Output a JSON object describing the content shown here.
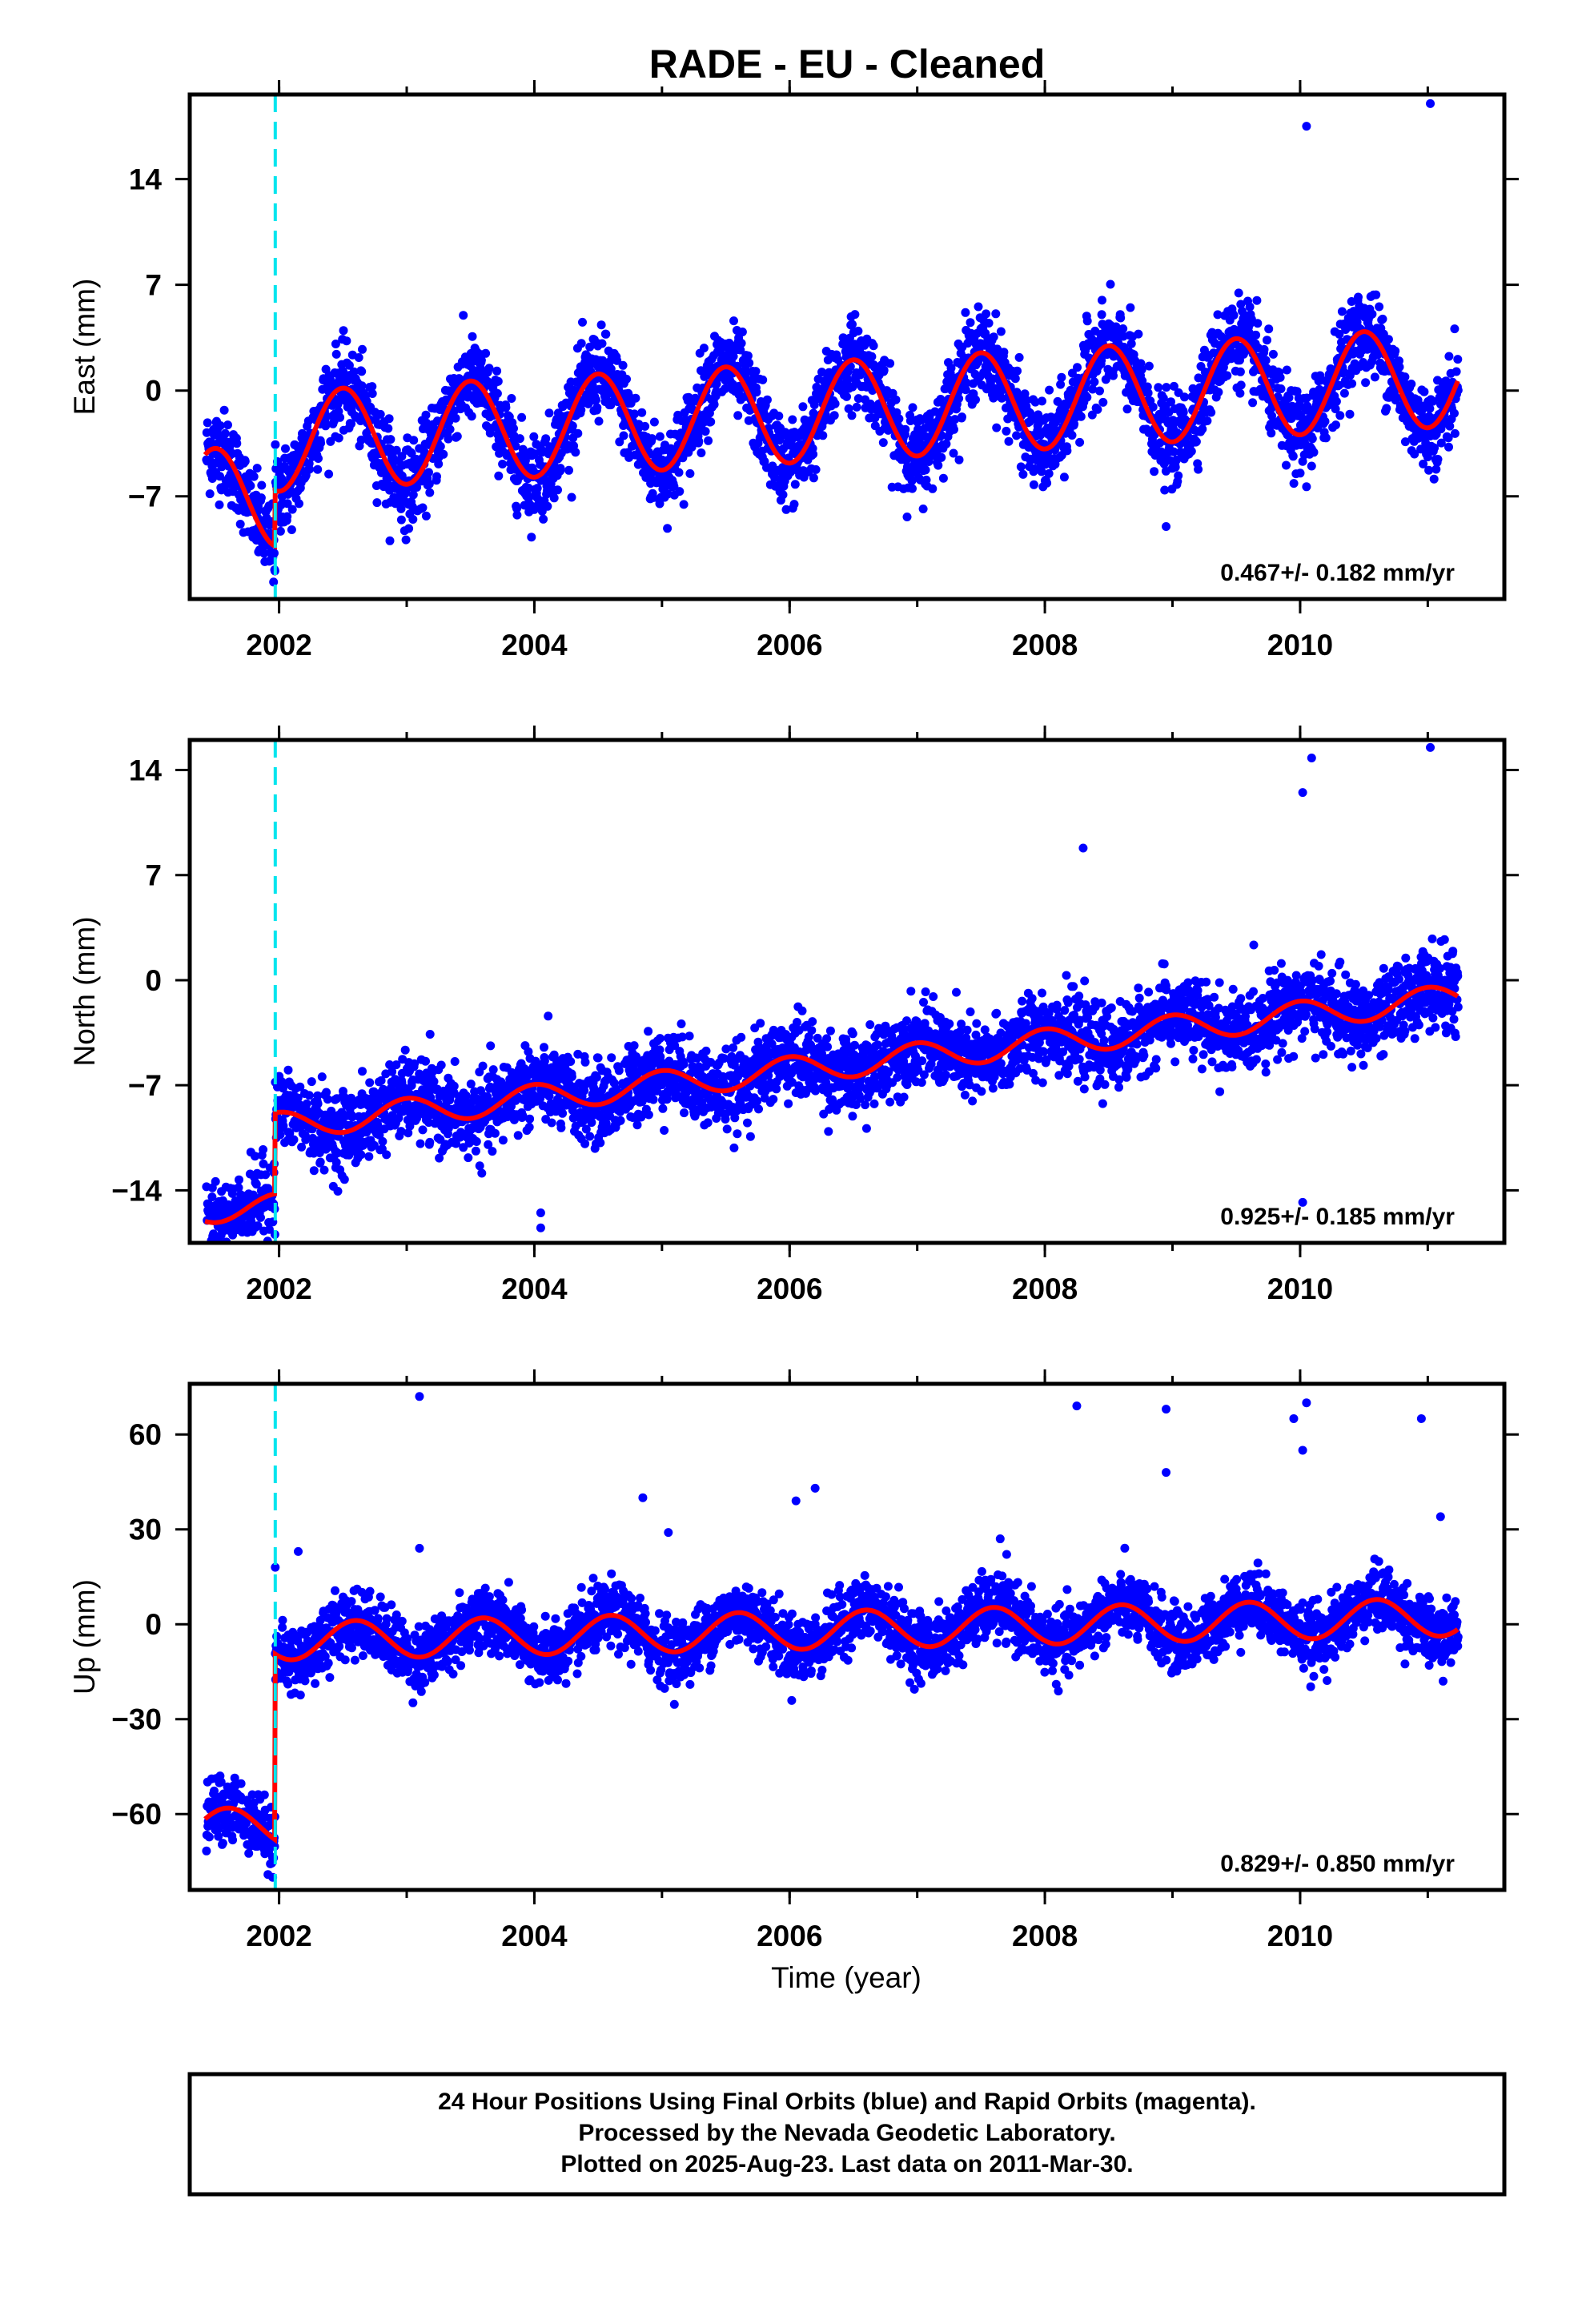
{
  "title": "RADE  - EU - Cleaned",
  "xlabel": "Time (year)",
  "footer": [
    "24 Hour Positions Using Final Orbits (blue) and Rapid Orbits (magenta).",
    "Processed by the Nevada Geodetic Laboratory.",
    "Plotted on 2025-Aug-23. Last data on 2011-Mar-30."
  ],
  "colors": {
    "points": "#0000ff",
    "fit": "#ff0000",
    "event": "#00e5ee",
    "frame": "#000000"
  },
  "chart_data": [
    {
      "type": "scatter",
      "component": "east",
      "ylabel": "East (mm)",
      "rate_label": "0.467+/- 0.182 mm/yr",
      "xlim": [
        2001.3,
        2011.6
      ],
      "ylim": [
        -13.8,
        19.6
      ],
      "xticks": [
        2002,
        2004,
        2006,
        2008,
        2010
      ],
      "yticks": [
        -7,
        0,
        7,
        14
      ],
      "event_x": 2001.97,
      "fit": {
        "offset_before": -6.5,
        "offset_after": -1.5,
        "trend": 0.467,
        "amplitude": 3.3,
        "phase_peak": 0.5
      },
      "outliers": [
        [
          2010.05,
          17.5
        ],
        [
          2011.02,
          19.0
        ],
        [
          2008.95,
          -9.0
        ],
        [
          2010.09,
          -5.0
        ]
      ]
    },
    {
      "type": "scatter",
      "component": "north",
      "ylabel": "North (mm)",
      "rate_label": "0.925+/- 0.185 mm/yr",
      "xlim": [
        2001.3,
        2011.6
      ],
      "ylim": [
        -17.5,
        16.0
      ],
      "xticks": [
        2002,
        2004,
        2006,
        2008,
        2010
      ],
      "yticks": [
        -14,
        -7,
        0,
        7,
        14
      ],
      "event_x": 2001.97,
      "fit": {
        "offset_before": -14.0,
        "offset_after": -6.0,
        "trend": 0.925,
        "amplitude": 0.9,
        "phase_peak": 0.0
      },
      "outliers": [
        [
          2010.09,
          14.8
        ],
        [
          2011.02,
          15.5
        ],
        [
          2008.3,
          8.8
        ],
        [
          2010.02,
          12.5
        ],
        [
          2004.05,
          -15.5
        ],
        [
          2004.05,
          -16.5
        ],
        [
          2010.02,
          -14.8
        ],
        [
          2006.05,
          -7.5
        ]
      ]
    },
    {
      "type": "scatter",
      "component": "up",
      "ylabel": "Up (mm)",
      "rate_label": "0.829+/- 0.850 mm/yr",
      "xlim": [
        2001.3,
        2011.6
      ],
      "ylim": [
        -84.0,
        76.0
      ],
      "xticks": [
        2002,
        2004,
        2006,
        2008,
        2010
      ],
      "yticks": [
        -60,
        -30,
        0,
        30,
        60
      ],
      "event_x": 2001.97,
      "fit": {
        "offset_before": -63.0,
        "offset_after": -2.0,
        "trend": 0.829,
        "amplitude": 6.0,
        "phase_peak": 0.6
      },
      "outliers": [
        [
          2003.1,
          72.0
        ],
        [
          2008.25,
          69.0
        ],
        [
          2008.95,
          68.0
        ],
        [
          2010.05,
          70.0
        ],
        [
          2009.95,
          65.0
        ],
        [
          2010.95,
          65.0
        ],
        [
          2011.1,
          34.0
        ],
        [
          2006.2,
          43.0
        ],
        [
          2006.05,
          39.0
        ],
        [
          2005.05,
          29.0
        ],
        [
          2004.85,
          40.0
        ],
        [
          2008.95,
          48.0
        ],
        [
          2010.02,
          55.0
        ],
        [
          2007.65,
          27.0
        ],
        [
          2003.1,
          24.0
        ],
        [
          2002.15,
          23.0
        ],
        [
          2001.97,
          18.0
        ],
        [
          2001.95,
          -80.0
        ]
      ]
    }
  ]
}
